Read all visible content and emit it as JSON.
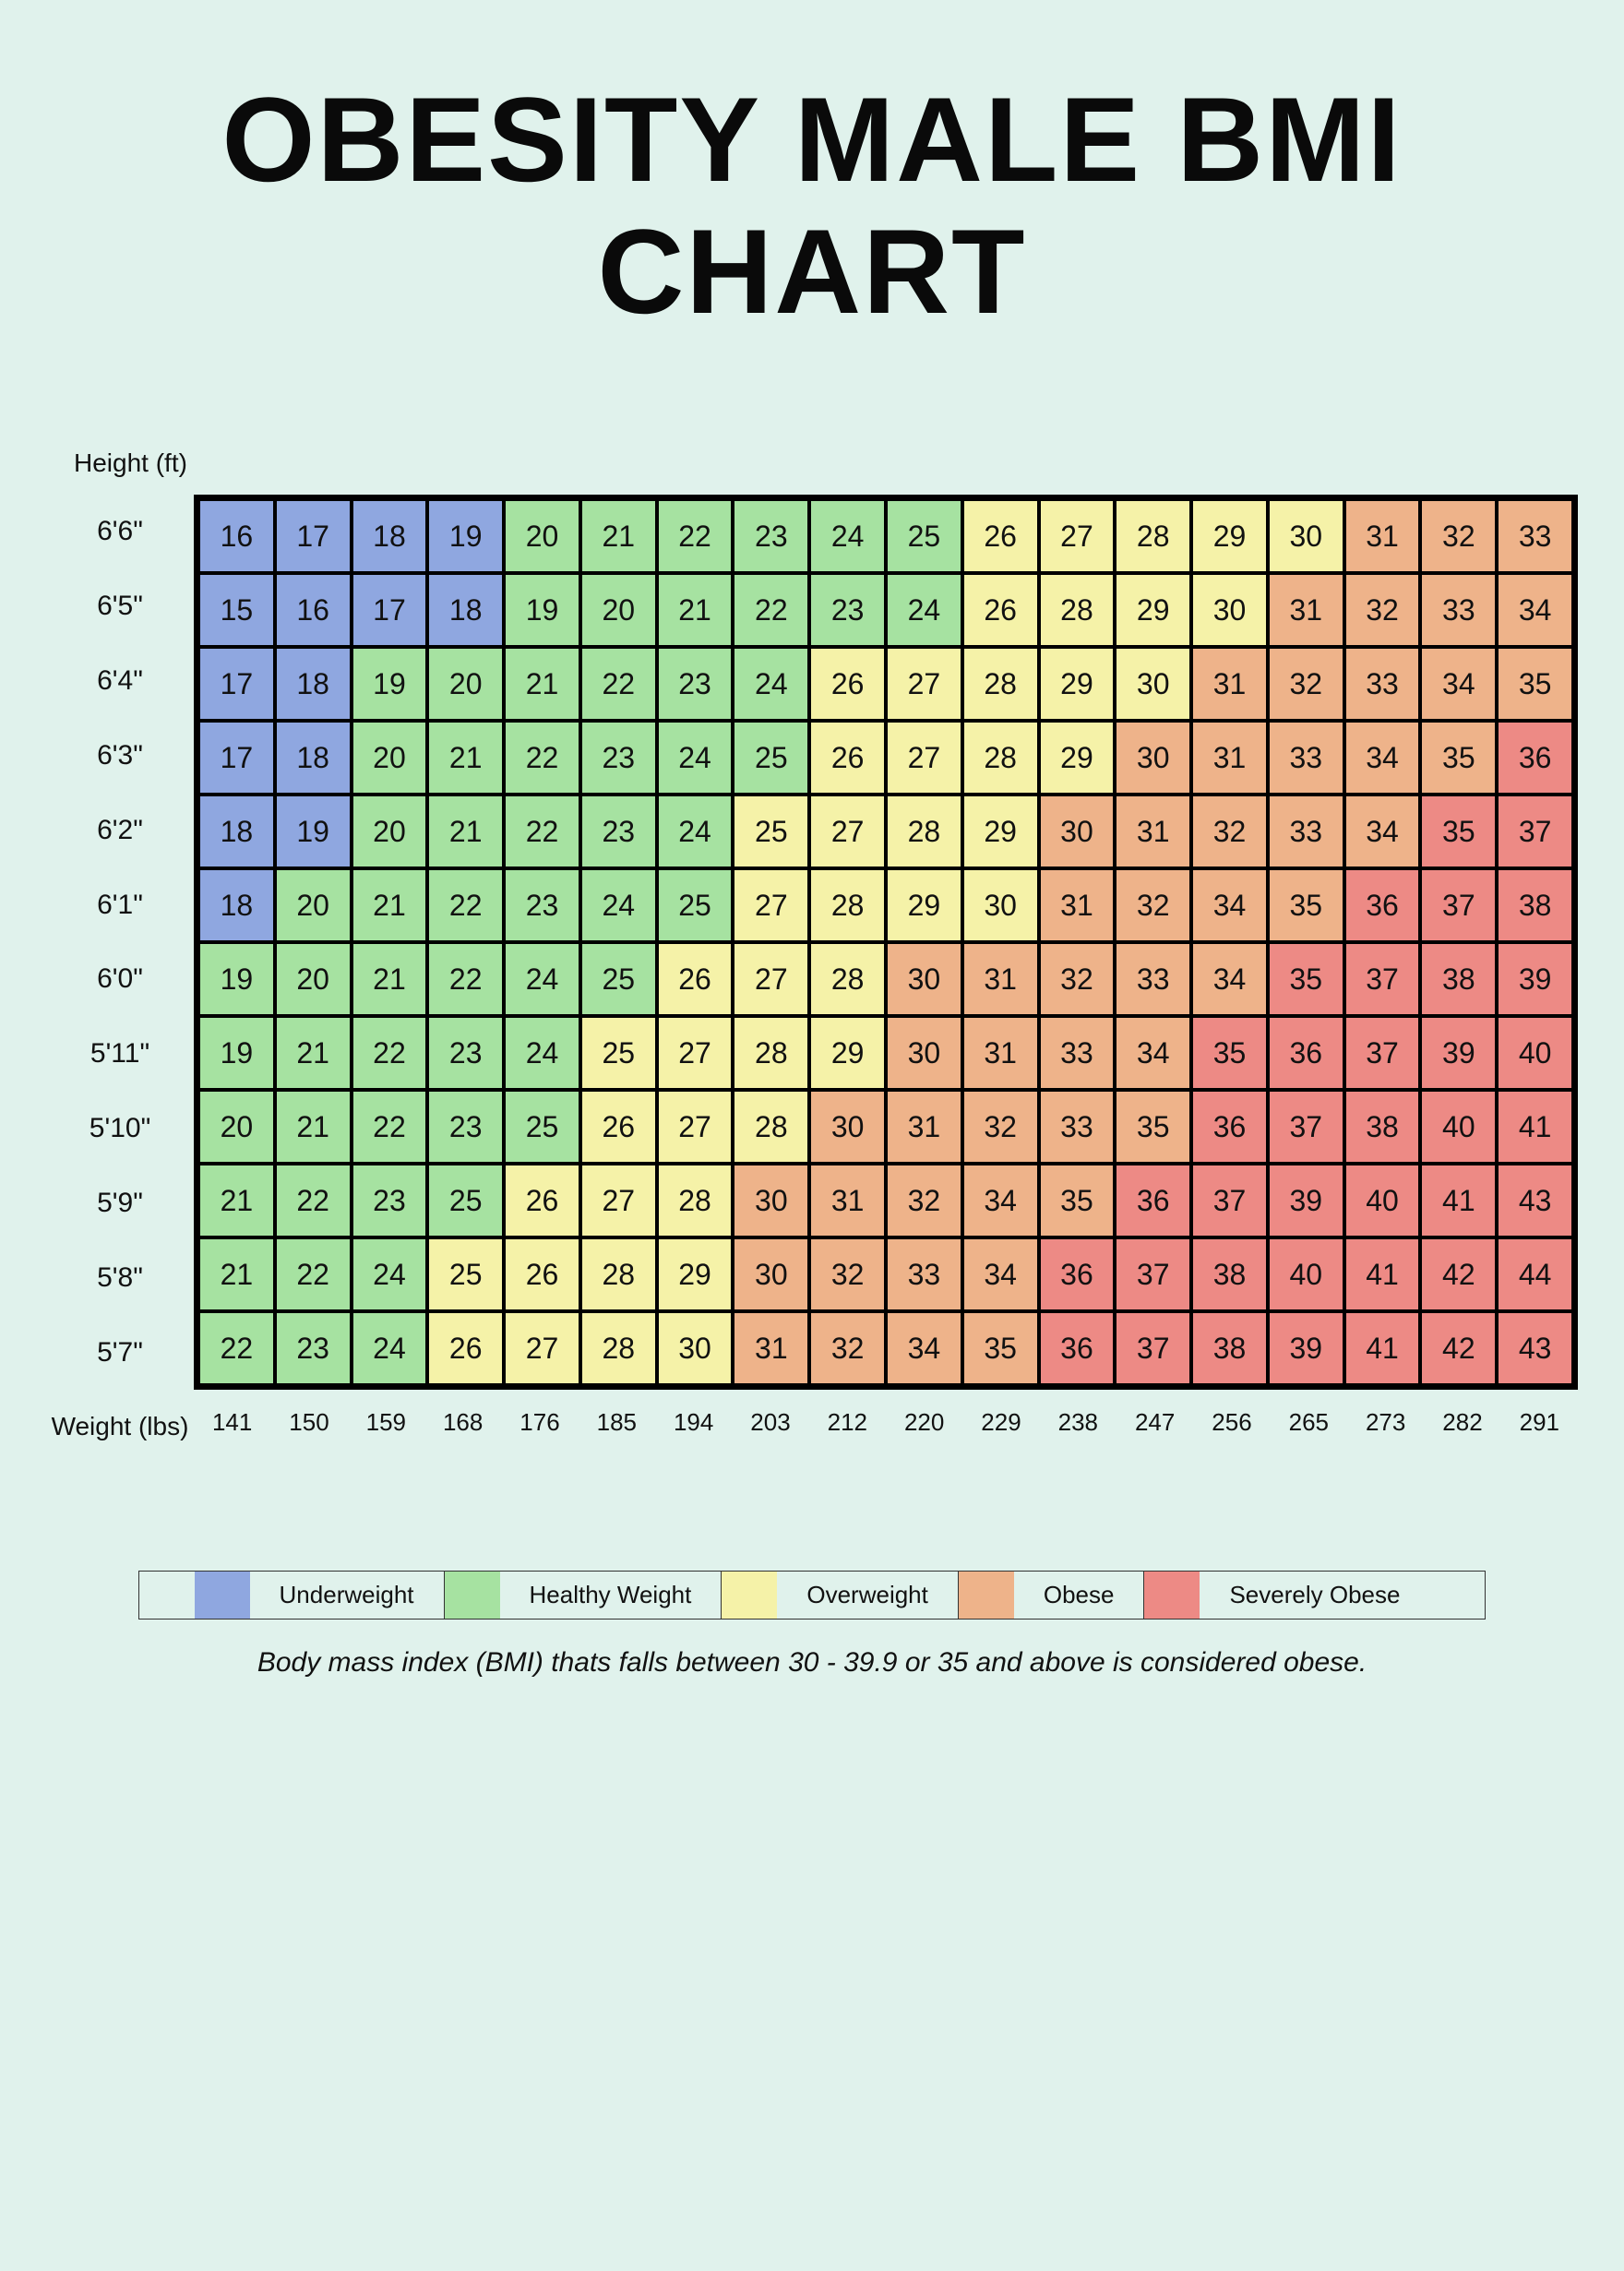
{
  "title": "OBESITY MALE BMI CHART",
  "y_axis_label": "Height (ft)",
  "x_axis_label": "Weight (lbs)",
  "footnote": "Body mass index (BMI) thats falls between 30 - 39.9 or 35 and above is considered obese.",
  "chart": {
    "type": "heatmap-table",
    "background_color": "#e0f2ec",
    "cell_border_color": "#000000",
    "cell_font_size": 32,
    "categories": {
      "underweight": {
        "label": "Underweight",
        "color": "#8fa7e0"
      },
      "healthy": {
        "label": "Healthy Weight",
        "color": "#a6e2a1"
      },
      "overweight": {
        "label": "Overweight",
        "color": "#f5f2a8"
      },
      "obese": {
        "label": "Obese",
        "color": "#eeb38a"
      },
      "severely_obese": {
        "label": "Severely Obese",
        "color": "#ed8a85"
      }
    },
    "heights": [
      "6'6\"",
      "6'5\"",
      "6'4\"",
      "6'3\"",
      "6'2\"",
      "6'1\"",
      "6'0\"",
      "5'11\"",
      "5'10\"",
      "5'9\"",
      "5'8\"",
      "5'7\""
    ],
    "weights": [
      "141",
      "150",
      "159",
      "168",
      "176",
      "185",
      "194",
      "203",
      "212",
      "220",
      "229",
      "238",
      "247",
      "256",
      "265",
      "273",
      "282",
      "291"
    ],
    "cells": [
      [
        {
          "v": 16,
          "c": "underweight"
        },
        {
          "v": 17,
          "c": "underweight"
        },
        {
          "v": 18,
          "c": "underweight"
        },
        {
          "v": 19,
          "c": "underweight"
        },
        {
          "v": 20,
          "c": "healthy"
        },
        {
          "v": 21,
          "c": "healthy"
        },
        {
          "v": 22,
          "c": "healthy"
        },
        {
          "v": 23,
          "c": "healthy"
        },
        {
          "v": 24,
          "c": "healthy"
        },
        {
          "v": 25,
          "c": "healthy"
        },
        {
          "v": 26,
          "c": "overweight"
        },
        {
          "v": 27,
          "c": "overweight"
        },
        {
          "v": 28,
          "c": "overweight"
        },
        {
          "v": 29,
          "c": "overweight"
        },
        {
          "v": 30,
          "c": "overweight"
        },
        {
          "v": 31,
          "c": "obese"
        },
        {
          "v": 32,
          "c": "obese"
        },
        {
          "v": 33,
          "c": "obese"
        }
      ],
      [
        {
          "v": 15,
          "c": "underweight"
        },
        {
          "v": 16,
          "c": "underweight"
        },
        {
          "v": 17,
          "c": "underweight"
        },
        {
          "v": 18,
          "c": "underweight"
        },
        {
          "v": 19,
          "c": "healthy"
        },
        {
          "v": 20,
          "c": "healthy"
        },
        {
          "v": 21,
          "c": "healthy"
        },
        {
          "v": 22,
          "c": "healthy"
        },
        {
          "v": 23,
          "c": "healthy"
        },
        {
          "v": 24,
          "c": "healthy"
        },
        {
          "v": 26,
          "c": "overweight"
        },
        {
          "v": 28,
          "c": "overweight"
        },
        {
          "v": 29,
          "c": "overweight"
        },
        {
          "v": 30,
          "c": "overweight"
        },
        {
          "v": 31,
          "c": "obese"
        },
        {
          "v": 32,
          "c": "obese"
        },
        {
          "v": 33,
          "c": "obese"
        },
        {
          "v": 34,
          "c": "obese"
        }
      ],
      [
        {
          "v": 17,
          "c": "underweight"
        },
        {
          "v": 18,
          "c": "underweight"
        },
        {
          "v": 19,
          "c": "healthy"
        },
        {
          "v": 20,
          "c": "healthy"
        },
        {
          "v": 21,
          "c": "healthy"
        },
        {
          "v": 22,
          "c": "healthy"
        },
        {
          "v": 23,
          "c": "healthy"
        },
        {
          "v": 24,
          "c": "healthy"
        },
        {
          "v": 26,
          "c": "overweight"
        },
        {
          "v": 27,
          "c": "overweight"
        },
        {
          "v": 28,
          "c": "overweight"
        },
        {
          "v": 29,
          "c": "overweight"
        },
        {
          "v": 30,
          "c": "overweight"
        },
        {
          "v": 31,
          "c": "obese"
        },
        {
          "v": 32,
          "c": "obese"
        },
        {
          "v": 33,
          "c": "obese"
        },
        {
          "v": 34,
          "c": "obese"
        },
        {
          "v": 35,
          "c": "obese"
        }
      ],
      [
        {
          "v": 17,
          "c": "underweight"
        },
        {
          "v": 18,
          "c": "underweight"
        },
        {
          "v": 20,
          "c": "healthy"
        },
        {
          "v": 21,
          "c": "healthy"
        },
        {
          "v": 22,
          "c": "healthy"
        },
        {
          "v": 23,
          "c": "healthy"
        },
        {
          "v": 24,
          "c": "healthy"
        },
        {
          "v": 25,
          "c": "healthy"
        },
        {
          "v": 26,
          "c": "overweight"
        },
        {
          "v": 27,
          "c": "overweight"
        },
        {
          "v": 28,
          "c": "overweight"
        },
        {
          "v": 29,
          "c": "overweight"
        },
        {
          "v": 30,
          "c": "obese"
        },
        {
          "v": 31,
          "c": "obese"
        },
        {
          "v": 33,
          "c": "obese"
        },
        {
          "v": 34,
          "c": "obese"
        },
        {
          "v": 35,
          "c": "obese"
        },
        {
          "v": 36,
          "c": "severely_obese"
        }
      ],
      [
        {
          "v": 18,
          "c": "underweight"
        },
        {
          "v": 19,
          "c": "underweight"
        },
        {
          "v": 20,
          "c": "healthy"
        },
        {
          "v": 21,
          "c": "healthy"
        },
        {
          "v": 22,
          "c": "healthy"
        },
        {
          "v": 23,
          "c": "healthy"
        },
        {
          "v": 24,
          "c": "healthy"
        },
        {
          "v": 25,
          "c": "overweight"
        },
        {
          "v": 27,
          "c": "overweight"
        },
        {
          "v": 28,
          "c": "overweight"
        },
        {
          "v": 29,
          "c": "overweight"
        },
        {
          "v": 30,
          "c": "obese"
        },
        {
          "v": 31,
          "c": "obese"
        },
        {
          "v": 32,
          "c": "obese"
        },
        {
          "v": 33,
          "c": "obese"
        },
        {
          "v": 34,
          "c": "obese"
        },
        {
          "v": 35,
          "c": "severely_obese"
        },
        {
          "v": 37,
          "c": "severely_obese"
        }
      ],
      [
        {
          "v": 18,
          "c": "underweight"
        },
        {
          "v": 20,
          "c": "healthy"
        },
        {
          "v": 21,
          "c": "healthy"
        },
        {
          "v": 22,
          "c": "healthy"
        },
        {
          "v": 23,
          "c": "healthy"
        },
        {
          "v": 24,
          "c": "healthy"
        },
        {
          "v": 25,
          "c": "healthy"
        },
        {
          "v": 27,
          "c": "overweight"
        },
        {
          "v": 28,
          "c": "overweight"
        },
        {
          "v": 29,
          "c": "overweight"
        },
        {
          "v": 30,
          "c": "overweight"
        },
        {
          "v": 31,
          "c": "obese"
        },
        {
          "v": 32,
          "c": "obese"
        },
        {
          "v": 34,
          "c": "obese"
        },
        {
          "v": 35,
          "c": "obese"
        },
        {
          "v": 36,
          "c": "severely_obese"
        },
        {
          "v": 37,
          "c": "severely_obese"
        },
        {
          "v": 38,
          "c": "severely_obese"
        }
      ],
      [
        {
          "v": 19,
          "c": "healthy"
        },
        {
          "v": 20,
          "c": "healthy"
        },
        {
          "v": 21,
          "c": "healthy"
        },
        {
          "v": 22,
          "c": "healthy"
        },
        {
          "v": 24,
          "c": "healthy"
        },
        {
          "v": 25,
          "c": "healthy"
        },
        {
          "v": 26,
          "c": "overweight"
        },
        {
          "v": 27,
          "c": "overweight"
        },
        {
          "v": 28,
          "c": "overweight"
        },
        {
          "v": 30,
          "c": "obese"
        },
        {
          "v": 31,
          "c": "obese"
        },
        {
          "v": 32,
          "c": "obese"
        },
        {
          "v": 33,
          "c": "obese"
        },
        {
          "v": 34,
          "c": "obese"
        },
        {
          "v": 35,
          "c": "severely_obese"
        },
        {
          "v": 37,
          "c": "severely_obese"
        },
        {
          "v": 38,
          "c": "severely_obese"
        },
        {
          "v": 39,
          "c": "severely_obese"
        }
      ],
      [
        {
          "v": 19,
          "c": "healthy"
        },
        {
          "v": 21,
          "c": "healthy"
        },
        {
          "v": 22,
          "c": "healthy"
        },
        {
          "v": 23,
          "c": "healthy"
        },
        {
          "v": 24,
          "c": "healthy"
        },
        {
          "v": 25,
          "c": "overweight"
        },
        {
          "v": 27,
          "c": "overweight"
        },
        {
          "v": 28,
          "c": "overweight"
        },
        {
          "v": 29,
          "c": "overweight"
        },
        {
          "v": 30,
          "c": "obese"
        },
        {
          "v": 31,
          "c": "obese"
        },
        {
          "v": 33,
          "c": "obese"
        },
        {
          "v": 34,
          "c": "obese"
        },
        {
          "v": 35,
          "c": "severely_obese"
        },
        {
          "v": 36,
          "c": "severely_obese"
        },
        {
          "v": 37,
          "c": "severely_obese"
        },
        {
          "v": 39,
          "c": "severely_obese"
        },
        {
          "v": 40,
          "c": "severely_obese"
        }
      ],
      [
        {
          "v": 20,
          "c": "healthy"
        },
        {
          "v": 21,
          "c": "healthy"
        },
        {
          "v": 22,
          "c": "healthy"
        },
        {
          "v": 23,
          "c": "healthy"
        },
        {
          "v": 25,
          "c": "healthy"
        },
        {
          "v": 26,
          "c": "overweight"
        },
        {
          "v": 27,
          "c": "overweight"
        },
        {
          "v": 28,
          "c": "overweight"
        },
        {
          "v": 30,
          "c": "obese"
        },
        {
          "v": 31,
          "c": "obese"
        },
        {
          "v": 32,
          "c": "obese"
        },
        {
          "v": 33,
          "c": "obese"
        },
        {
          "v": 35,
          "c": "obese"
        },
        {
          "v": 36,
          "c": "severely_obese"
        },
        {
          "v": 37,
          "c": "severely_obese"
        },
        {
          "v": 38,
          "c": "severely_obese"
        },
        {
          "v": 40,
          "c": "severely_obese"
        },
        {
          "v": 41,
          "c": "severely_obese"
        }
      ],
      [
        {
          "v": 21,
          "c": "healthy"
        },
        {
          "v": 22,
          "c": "healthy"
        },
        {
          "v": 23,
          "c": "healthy"
        },
        {
          "v": 25,
          "c": "healthy"
        },
        {
          "v": 26,
          "c": "overweight"
        },
        {
          "v": 27,
          "c": "overweight"
        },
        {
          "v": 28,
          "c": "overweight"
        },
        {
          "v": 30,
          "c": "obese"
        },
        {
          "v": 31,
          "c": "obese"
        },
        {
          "v": 32,
          "c": "obese"
        },
        {
          "v": 34,
          "c": "obese"
        },
        {
          "v": 35,
          "c": "obese"
        },
        {
          "v": 36,
          "c": "severely_obese"
        },
        {
          "v": 37,
          "c": "severely_obese"
        },
        {
          "v": 39,
          "c": "severely_obese"
        },
        {
          "v": 40,
          "c": "severely_obese"
        },
        {
          "v": 41,
          "c": "severely_obese"
        },
        {
          "v": 43,
          "c": "severely_obese"
        }
      ],
      [
        {
          "v": 21,
          "c": "healthy"
        },
        {
          "v": 22,
          "c": "healthy"
        },
        {
          "v": 24,
          "c": "healthy"
        },
        {
          "v": 25,
          "c": "overweight"
        },
        {
          "v": 26,
          "c": "overweight"
        },
        {
          "v": 28,
          "c": "overweight"
        },
        {
          "v": 29,
          "c": "overweight"
        },
        {
          "v": 30,
          "c": "obese"
        },
        {
          "v": 32,
          "c": "obese"
        },
        {
          "v": 33,
          "c": "obese"
        },
        {
          "v": 34,
          "c": "obese"
        },
        {
          "v": 36,
          "c": "severely_obese"
        },
        {
          "v": 37,
          "c": "severely_obese"
        },
        {
          "v": 38,
          "c": "severely_obese"
        },
        {
          "v": 40,
          "c": "severely_obese"
        },
        {
          "v": 41,
          "c": "severely_obese"
        },
        {
          "v": 42,
          "c": "severely_obese"
        },
        {
          "v": 44,
          "c": "severely_obese"
        }
      ],
      [
        {
          "v": 22,
          "c": "healthy"
        },
        {
          "v": 23,
          "c": "healthy"
        },
        {
          "v": 24,
          "c": "healthy"
        },
        {
          "v": 26,
          "c": "overweight"
        },
        {
          "v": 27,
          "c": "overweight"
        },
        {
          "v": 28,
          "c": "overweight"
        },
        {
          "v": 30,
          "c": "overweight"
        },
        {
          "v": 31,
          "c": "obese"
        },
        {
          "v": 32,
          "c": "obese"
        },
        {
          "v": 34,
          "c": "obese"
        },
        {
          "v": 35,
          "c": "obese"
        },
        {
          "v": 36,
          "c": "severely_obese"
        },
        {
          "v": 37,
          "c": "severely_obese"
        },
        {
          "v": 38,
          "c": "severely_obese"
        },
        {
          "v": 39,
          "c": "severely_obese"
        },
        {
          "v": 41,
          "c": "severely_obese"
        },
        {
          "v": 42,
          "c": "severely_obese"
        },
        {
          "v": 43,
          "c": "severely_obese"
        }
      ]
    ],
    "legend_order": [
      "underweight",
      "healthy",
      "overweight",
      "obese",
      "severely_obese"
    ]
  }
}
